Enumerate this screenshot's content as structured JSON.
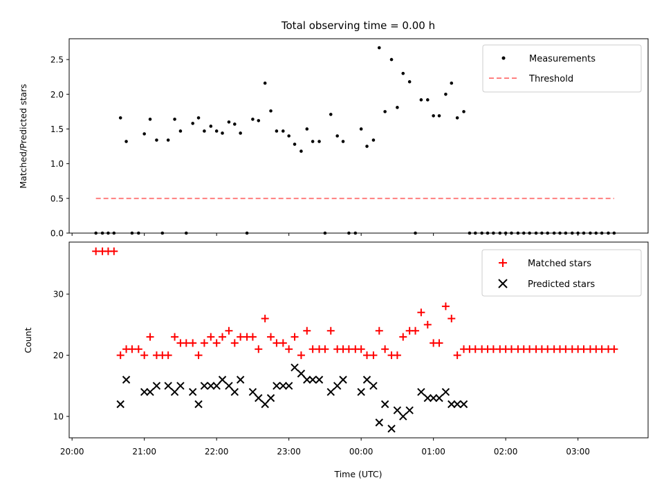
{
  "chart_data": {
    "type": "scatter",
    "title": "Total observing time = 0.00 h",
    "xlabel": "Time (UTC)",
    "x_ticks": [
      "20:00",
      "21:00",
      "22:00",
      "23:00",
      "00:00",
      "01:00",
      "02:00",
      "03:00"
    ],
    "xlim_hours": [
      19.96,
      27.97
    ],
    "colors": {
      "measurements": "#000000",
      "threshold": "#ff7f7f",
      "matched": "#ff0000",
      "predicted": "#000000"
    },
    "top": {
      "ylabel": "Matched/Predicted stars",
      "ylim": [
        0,
        2.8
      ],
      "yticks": [
        0.0,
        0.5,
        1.0,
        1.5,
        2.0,
        2.5
      ],
      "ytick_labels": [
        "0.0",
        "0.5",
        "1.0",
        "1.5",
        "2.0",
        "2.5"
      ],
      "legend": [
        "Measurements",
        "Threshold"
      ],
      "threshold": {
        "value": 0.5,
        "x_range": [
          20.33,
          27.5
        ]
      },
      "measurements": {
        "x": [
          20.33,
          20.42,
          20.5,
          20.58,
          20.67,
          20.75,
          20.83,
          20.92,
          21.0,
          21.08,
          21.17,
          21.25,
          21.33,
          21.42,
          21.5,
          21.58,
          21.67,
          21.75,
          21.83,
          21.92,
          22.0,
          22.08,
          22.17,
          22.25,
          22.33,
          22.42,
          22.5,
          22.58,
          22.67,
          22.75,
          22.83,
          22.92,
          23.0,
          23.08,
          23.17,
          23.25,
          23.33,
          23.42,
          23.5,
          23.58,
          23.67,
          23.75,
          23.83,
          23.92,
          24.0,
          24.08,
          24.17,
          24.25,
          24.33,
          24.42,
          24.5,
          24.58,
          24.67,
          24.75,
          24.83,
          24.92,
          25.0,
          25.08,
          25.17,
          25.25,
          25.33,
          25.42,
          25.5,
          25.58,
          25.67,
          25.75,
          25.83,
          25.92,
          26.0,
          26.08,
          26.17,
          26.25,
          26.33,
          26.42,
          26.5,
          26.58,
          26.67,
          26.75,
          26.83,
          26.92,
          27.0,
          27.08,
          27.17,
          27.25,
          27.33,
          27.42,
          27.5
        ],
        "y": [
          0,
          0,
          0,
          0,
          1.66,
          1.32,
          0,
          0,
          1.43,
          1.64,
          1.34,
          0,
          1.34,
          1.64,
          1.47,
          0,
          1.58,
          1.66,
          1.47,
          1.54,
          1.47,
          1.44,
          1.6,
          1.57,
          1.44,
          0,
          1.64,
          1.62,
          2.16,
          1.76,
          1.47,
          1.47,
          1.4,
          1.28,
          1.18,
          1.5,
          1.32,
          1.32,
          0,
          1.71,
          1.4,
          1.32,
          0,
          0,
          1.5,
          1.25,
          1.34,
          2.67,
          1.75,
          2.5,
          1.81,
          2.3,
          2.18,
          0,
          1.92,
          1.92,
          1.69,
          1.69,
          2.0,
          2.16,
          1.66,
          1.75,
          0,
          0,
          0,
          0,
          0,
          0,
          0,
          0,
          0,
          0,
          0,
          0,
          0,
          0,
          0,
          0,
          0,
          0,
          0,
          0,
          0,
          0,
          0,
          0,
          0
        ]
      }
    },
    "bottom": {
      "ylabel": "Count",
      "ylim": [
        6.5,
        38.5
      ],
      "yticks": [
        10,
        20,
        30
      ],
      "ytick_labels": [
        "10",
        "20",
        "30"
      ],
      "legend": [
        "Matched stars",
        "Predicted stars"
      ],
      "matched": {
        "x": [
          20.33,
          20.42,
          20.5,
          20.58,
          20.67,
          20.75,
          20.83,
          20.92,
          21.0,
          21.08,
          21.17,
          21.25,
          21.33,
          21.42,
          21.5,
          21.58,
          21.67,
          21.75,
          21.83,
          21.92,
          22.0,
          22.08,
          22.17,
          22.25,
          22.33,
          22.42,
          22.5,
          22.58,
          22.67,
          22.75,
          22.83,
          22.92,
          23.0,
          23.08,
          23.17,
          23.25,
          23.33,
          23.42,
          23.5,
          23.58,
          23.67,
          23.75,
          23.83,
          23.92,
          24.0,
          24.08,
          24.17,
          24.25,
          24.33,
          24.42,
          24.5,
          24.58,
          24.67,
          24.75,
          24.83,
          24.92,
          25.0,
          25.08,
          25.17,
          25.25,
          25.33,
          25.42,
          25.5,
          25.58,
          25.67,
          25.75,
          25.83,
          25.92,
          26.0,
          26.08,
          26.17,
          26.25,
          26.33,
          26.42,
          26.5,
          26.58,
          26.67,
          26.75,
          26.83,
          26.92,
          27.0,
          27.08,
          27.17,
          27.25,
          27.33,
          27.42,
          27.5
        ],
        "y": [
          37,
          37,
          37,
          37,
          20,
          21,
          21,
          21,
          20,
          23,
          20,
          20,
          20,
          23,
          22,
          22,
          22,
          20,
          22,
          23,
          22,
          23,
          24,
          22,
          23,
          23,
          23,
          21,
          26,
          23,
          22,
          22,
          21,
          23,
          20,
          24,
          21,
          21,
          21,
          24,
          21,
          21,
          21,
          21,
          21,
          20,
          20,
          24,
          21,
          20,
          20,
          23,
          24,
          24,
          27,
          25,
          22,
          22,
          28,
          26,
          20,
          21,
          21,
          21,
          21,
          21,
          21,
          21,
          21,
          21,
          21,
          21,
          21,
          21,
          21,
          21,
          21,
          21,
          21,
          21,
          21,
          21,
          21,
          21,
          21,
          21,
          21
        ]
      },
      "predicted": {
        "x": [
          20.67,
          20.75,
          21.0,
          21.08,
          21.17,
          21.33,
          21.42,
          21.5,
          21.67,
          21.75,
          21.83,
          21.92,
          22.0,
          22.08,
          22.17,
          22.25,
          22.33,
          22.5,
          22.58,
          22.67,
          22.75,
          22.83,
          22.92,
          23.0,
          23.08,
          23.17,
          23.25,
          23.33,
          23.42,
          23.58,
          23.67,
          23.75,
          24.0,
          24.08,
          24.17,
          24.25,
          24.33,
          24.42,
          24.5,
          24.58,
          24.67,
          24.83,
          24.92,
          25.0,
          25.08,
          25.17,
          25.25,
          25.33,
          25.42
        ],
        "y": [
          12,
          16,
          14,
          14,
          15,
          15,
          14,
          15,
          14,
          12,
          15,
          15,
          15,
          16,
          15,
          14,
          16,
          14,
          13,
          12,
          13,
          15,
          15,
          15,
          18,
          17,
          16,
          16,
          16,
          14,
          15,
          16,
          14,
          16,
          15,
          9,
          12,
          8,
          11,
          10,
          11,
          14,
          13,
          13,
          13,
          14,
          12,
          12,
          12
        ]
      }
    }
  }
}
